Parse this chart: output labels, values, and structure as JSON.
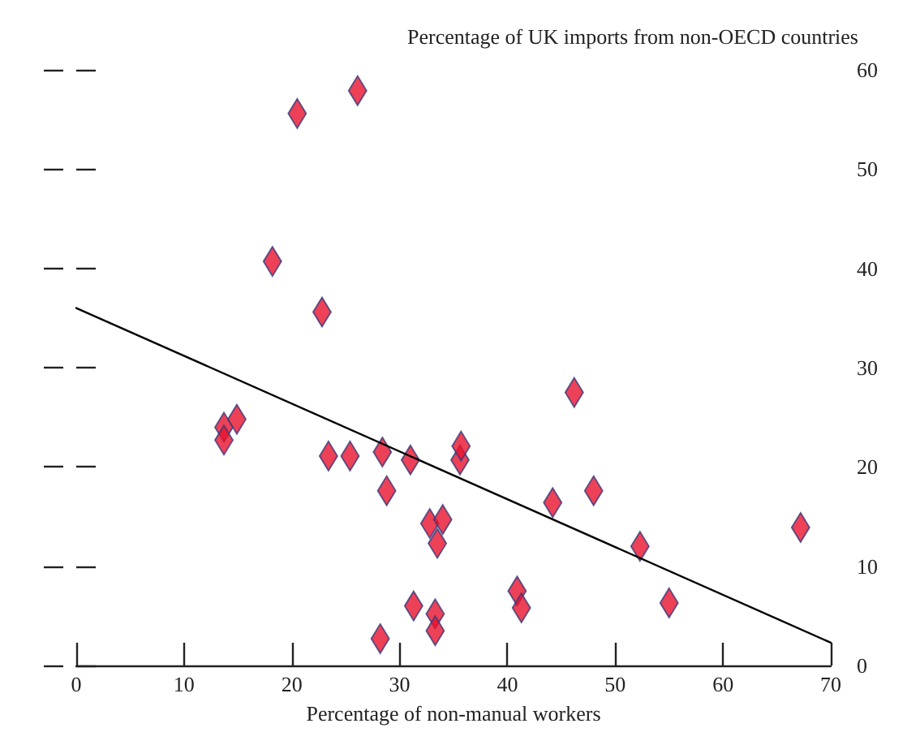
{
  "chart_data": {
    "type": "scatter",
    "xlabel": "Percentage of non-manual workers",
    "ylabel": "Percentage of UK imports from non-OECD countries",
    "xlim": [
      0,
      70
    ],
    "xticks": [
      0,
      10,
      20,
      30,
      40,
      50,
      60,
      70
    ],
    "ylim": [
      0,
      60
    ],
    "yticks": [
      0,
      10,
      20,
      30,
      40,
      50,
      60
    ],
    "grid": false,
    "marker": "diamond",
    "series": [
      {
        "color": "#e8112d",
        "x": [
          20.5,
          26.1,
          18.2,
          22.8,
          13.7,
          14.9,
          13.7,
          23.4,
          25.4,
          28.4,
          31.0,
          28.8,
          32.8,
          34.0,
          33.5,
          31.3,
          33.3,
          33.3,
          28.2,
          35.6,
          35.7,
          46.2,
          44.2,
          48.0,
          52.3,
          67.2,
          40.9,
          41.3,
          55.0
        ],
        "values": [
          55.6,
          57.9,
          40.7,
          35.6,
          24.0,
          24.8,
          22.7,
          21.1,
          21.1,
          21.5,
          20.7,
          17.6,
          14.3,
          14.7,
          12.3,
          6.0,
          5.2,
          3.5,
          2.7,
          20.7,
          22.1,
          27.5,
          16.4,
          17.6,
          12.0,
          13.9,
          7.5,
          5.8,
          6.3
        ]
      },
      {
        "type": "line",
        "color": "#000000",
        "marker": "none",
        "line_style": "solid",
        "x": [
          0,
          70
        ],
        "values": [
          36.0,
          2.3
        ]
      }
    ]
  }
}
